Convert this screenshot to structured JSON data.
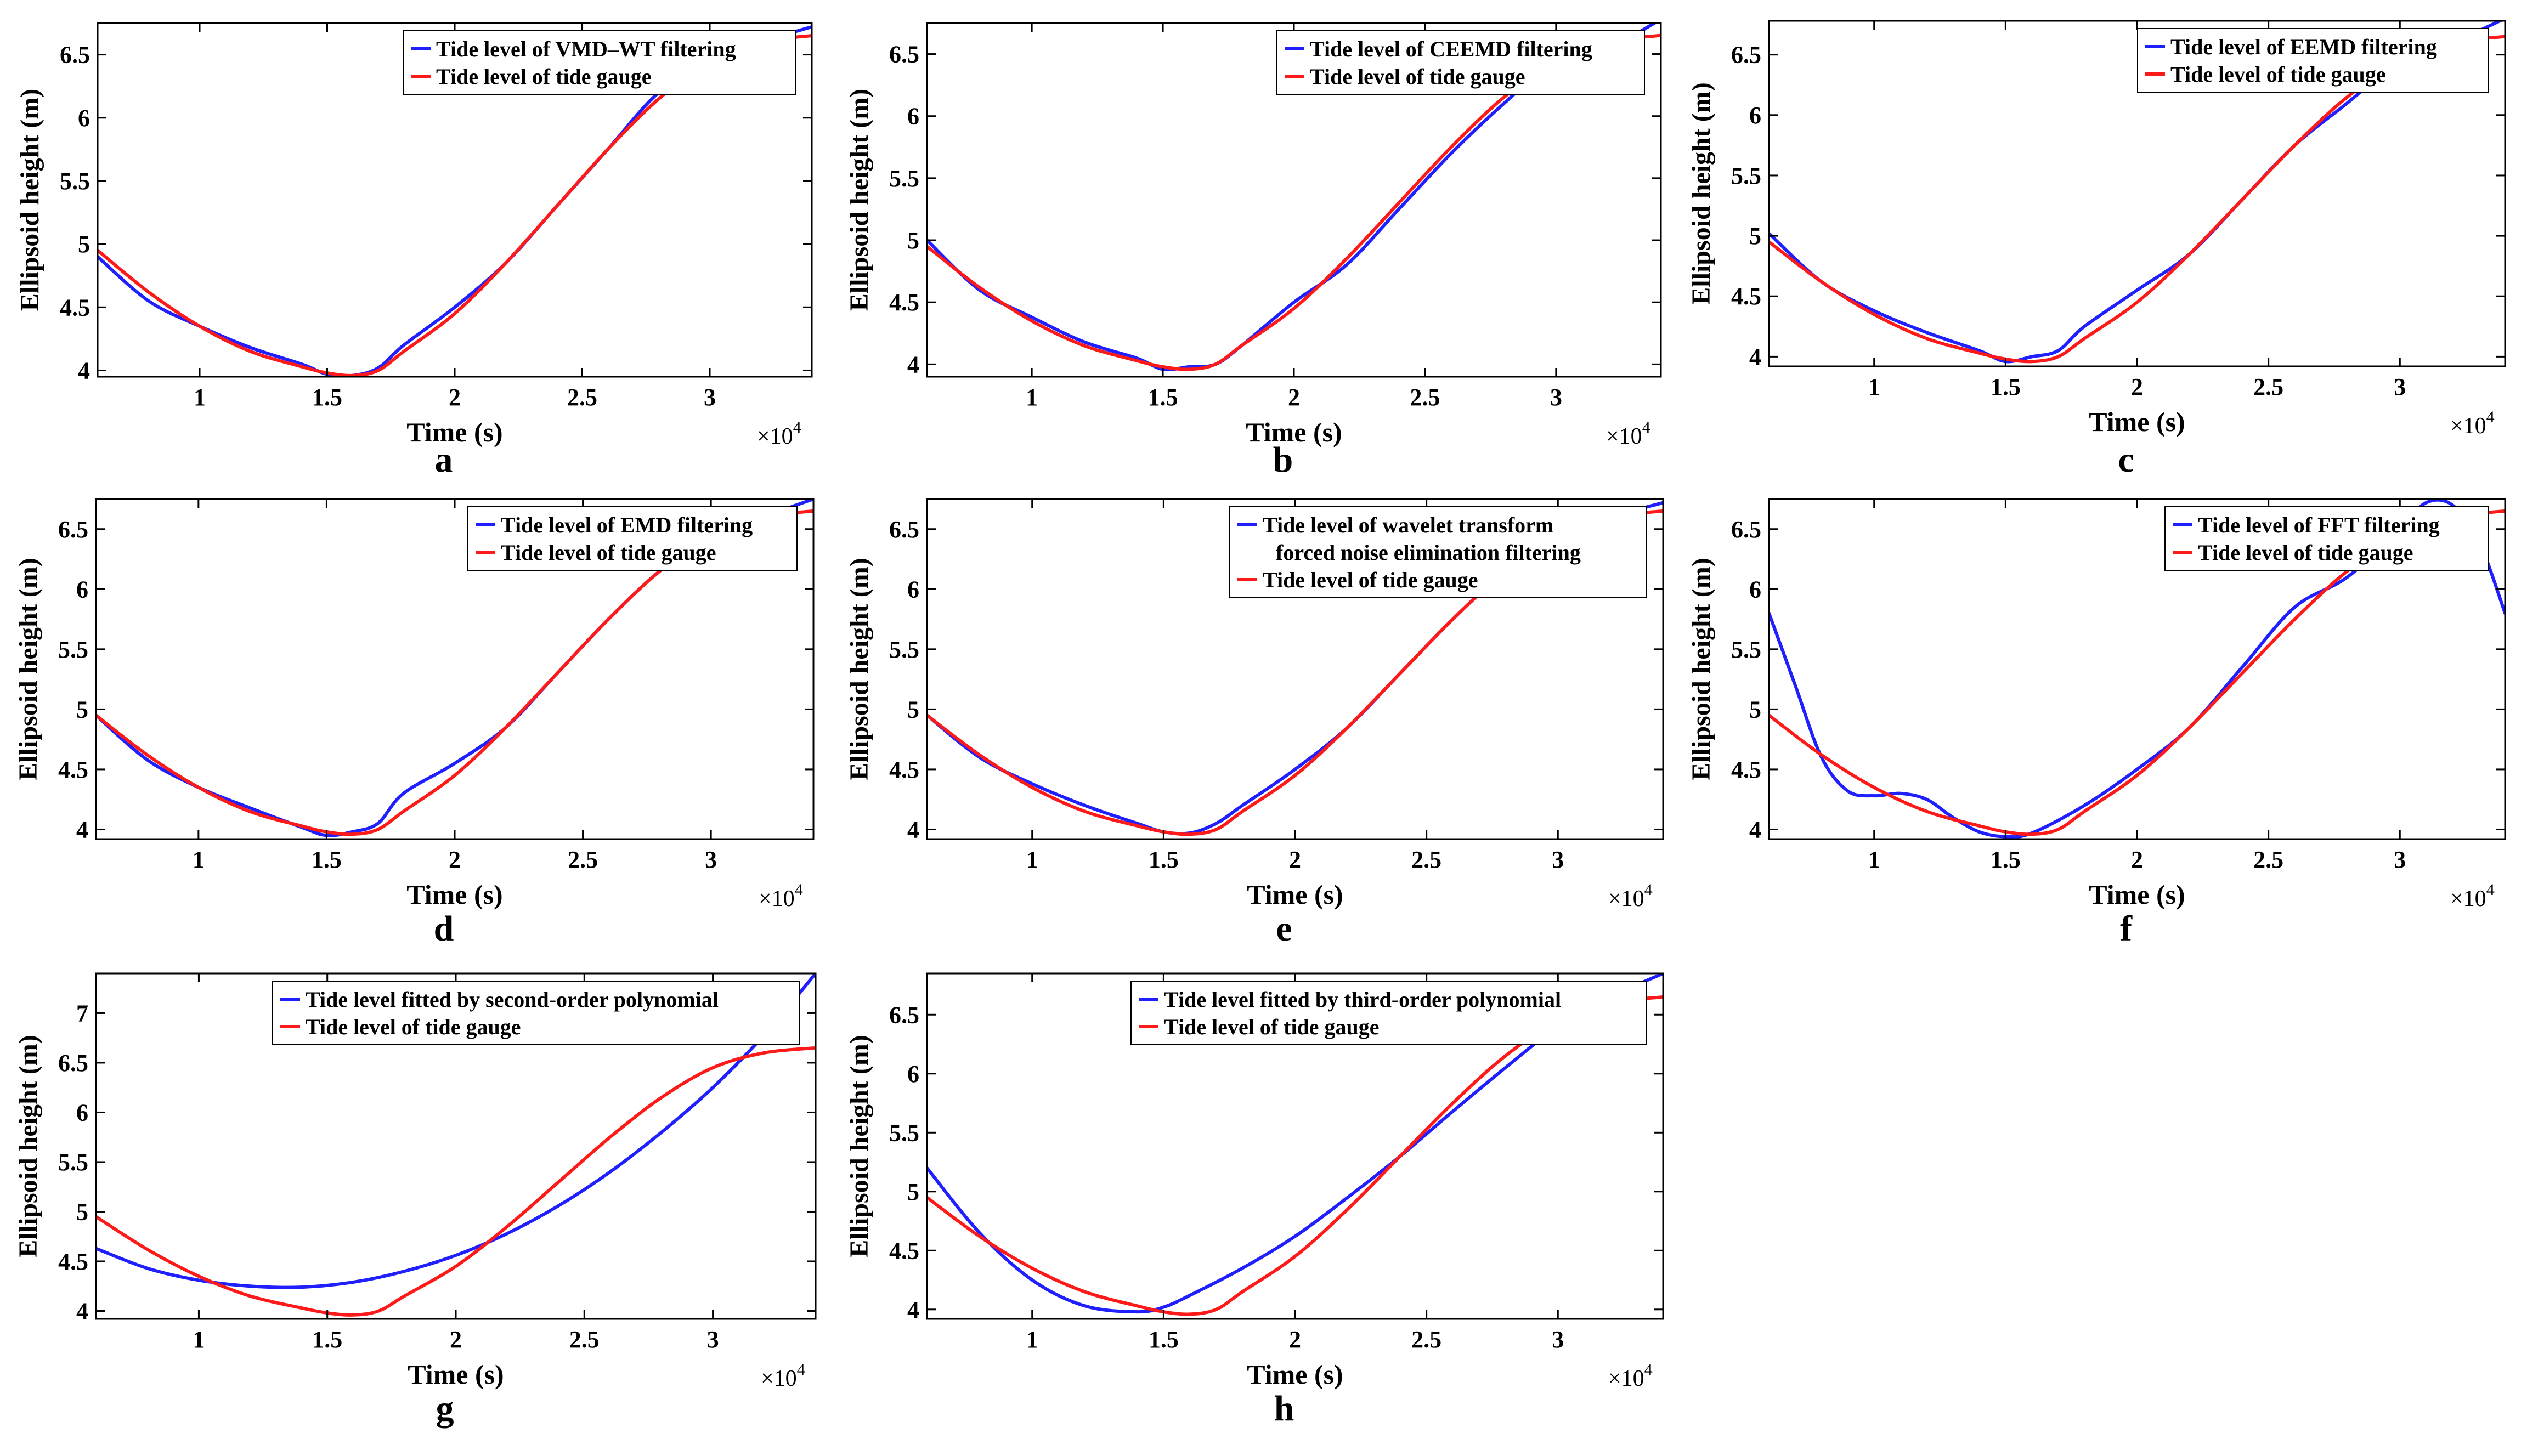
{
  "figure": {
    "colors": {
      "filtered": "#1f1fff",
      "gauge": "#ff1a1a",
      "axis": "#000000"
    },
    "x_exponent_label": "×10",
    "x_exponent_power": "4"
  },
  "chart_data": [
    {
      "panel": "a",
      "type": "line",
      "xlabel": "Time (s)",
      "ylabel": "Ellipsoid height (m)",
      "xlim": [
        0.6,
        3.4
      ],
      "ylim": [
        3.95,
        6.75
      ],
      "xticks": [
        "1",
        "1.5",
        "2",
        "2.5",
        "3"
      ],
      "yticks": [
        "4",
        "4.5",
        "5",
        "5.5",
        "6",
        "6.5"
      ],
      "legend": [
        "Tide level of VMD–WT filtering",
        "Tide level of tide gauge"
      ],
      "series": [
        {
          "name": "Tide level of VMD–WT filtering",
          "color": "blue",
          "x": [
            0.6,
            0.8,
            1.0,
            1.2,
            1.4,
            1.5,
            1.6,
            1.7,
            1.8,
            2.0,
            2.2,
            2.4,
            2.6,
            2.8,
            3.0,
            3.2,
            3.4
          ],
          "y": [
            4.9,
            4.55,
            4.35,
            4.18,
            4.05,
            3.97,
            3.96,
            4.02,
            4.2,
            4.5,
            4.85,
            5.3,
            5.75,
            6.2,
            6.45,
            6.6,
            6.72
          ]
        },
        {
          "name": "Tide level of tide gauge",
          "color": "red",
          "x": [
            0.6,
            0.8,
            1.0,
            1.2,
            1.4,
            1.5,
            1.6,
            1.7,
            1.8,
            2.0,
            2.2,
            2.4,
            2.6,
            2.8,
            3.0,
            3.2,
            3.4
          ],
          "y": [
            4.95,
            4.62,
            4.35,
            4.15,
            4.03,
            3.98,
            3.96,
            4.0,
            4.15,
            4.45,
            4.85,
            5.3,
            5.75,
            6.15,
            6.45,
            6.6,
            6.65
          ]
        }
      ]
    },
    {
      "panel": "b",
      "type": "line",
      "xlabel": "Time (s)",
      "ylabel": "Ellipsoid height (m)",
      "xlim": [
        0.6,
        3.4
      ],
      "ylim": [
        3.9,
        6.75
      ],
      "xticks": [
        "1",
        "1.5",
        "2",
        "2.5",
        "3"
      ],
      "yticks": [
        "4",
        "4.5",
        "5",
        "5.5",
        "6",
        "6.5"
      ],
      "legend": [
        "Tide level of CEEMD filtering",
        "Tide level of tide gauge"
      ],
      "series": [
        {
          "name": "Tide level of CEEMD filtering",
          "color": "blue",
          "x": [
            0.6,
            0.8,
            1.0,
            1.2,
            1.4,
            1.5,
            1.6,
            1.7,
            1.8,
            2.0,
            2.2,
            2.4,
            2.6,
            2.8,
            3.0,
            3.2,
            3.4
          ],
          "y": [
            5.0,
            4.6,
            4.38,
            4.18,
            4.05,
            3.96,
            3.98,
            4.0,
            4.15,
            4.5,
            4.8,
            5.25,
            5.7,
            6.1,
            6.45,
            6.55,
            6.78
          ]
        },
        {
          "name": "Tide level of tide gauge",
          "color": "red",
          "x": [
            0.6,
            0.8,
            1.0,
            1.2,
            1.4,
            1.5,
            1.6,
            1.7,
            1.8,
            2.0,
            2.2,
            2.4,
            2.6,
            2.8,
            3.0,
            3.2,
            3.4
          ],
          "y": [
            4.95,
            4.62,
            4.35,
            4.15,
            4.03,
            3.98,
            3.96,
            4.0,
            4.15,
            4.45,
            4.85,
            5.3,
            5.75,
            6.15,
            6.45,
            6.6,
            6.65
          ]
        }
      ]
    },
    {
      "panel": "c",
      "type": "line",
      "xlabel": "Time (s)",
      "ylabel": "Ellipsoid height (m)",
      "xlim": [
        0.6,
        3.4
      ],
      "ylim": [
        3.92,
        6.78
      ],
      "xticks": [
        "1",
        "1.5",
        "2",
        "2.5",
        "3"
      ],
      "yticks": [
        "4",
        "4.5",
        "5",
        "5.5",
        "6",
        "6.5"
      ],
      "legend": [
        "Tide level of EEMD filtering",
        "Tide level of tide gauge"
      ],
      "series": [
        {
          "name": "Tide level of EEMD filtering",
          "color": "blue",
          "x": [
            0.6,
            0.8,
            1.0,
            1.2,
            1.4,
            1.5,
            1.6,
            1.7,
            1.8,
            2.0,
            2.2,
            2.4,
            2.6,
            2.8,
            3.0,
            3.2,
            3.4
          ],
          "y": [
            5.02,
            4.62,
            4.38,
            4.2,
            4.05,
            3.96,
            4.0,
            4.05,
            4.25,
            4.55,
            4.85,
            5.3,
            5.75,
            6.1,
            6.45,
            6.6,
            6.8
          ]
        },
        {
          "name": "Tide level of tide gauge",
          "color": "red",
          "x": [
            0.6,
            0.8,
            1.0,
            1.2,
            1.4,
            1.5,
            1.6,
            1.7,
            1.8,
            2.0,
            2.2,
            2.4,
            2.6,
            2.8,
            3.0,
            3.2,
            3.4
          ],
          "y": [
            4.95,
            4.62,
            4.35,
            4.15,
            4.03,
            3.98,
            3.96,
            4.0,
            4.15,
            4.45,
            4.85,
            5.3,
            5.75,
            6.15,
            6.45,
            6.6,
            6.65
          ]
        }
      ]
    },
    {
      "panel": "d",
      "type": "line",
      "xlabel": "Time (s)",
      "ylabel": "Ellipsoid height (m)",
      "xlim": [
        0.6,
        3.4
      ],
      "ylim": [
        3.92,
        6.75
      ],
      "xticks": [
        "1",
        "1.5",
        "2",
        "2.5",
        "3"
      ],
      "yticks": [
        "4",
        "4.5",
        "5",
        "5.5",
        "6",
        "6.5"
      ],
      "legend": [
        "Tide level of EMD filtering",
        "Tide level of tide gauge"
      ],
      "series": [
        {
          "name": "Tide level of EMD filtering",
          "color": "blue",
          "x": [
            0.6,
            0.8,
            1.0,
            1.2,
            1.4,
            1.5,
            1.6,
            1.7,
            1.8,
            2.0,
            2.2,
            2.4,
            2.6,
            2.8,
            3.0,
            3.2,
            3.4
          ],
          "y": [
            4.95,
            4.58,
            4.35,
            4.18,
            4.02,
            3.95,
            3.98,
            4.05,
            4.3,
            4.55,
            4.85,
            5.3,
            5.75,
            6.15,
            6.45,
            6.6,
            6.75
          ]
        },
        {
          "name": "Tide level of tide gauge",
          "color": "red",
          "x": [
            0.6,
            0.8,
            1.0,
            1.2,
            1.4,
            1.5,
            1.6,
            1.7,
            1.8,
            2.0,
            2.2,
            2.4,
            2.6,
            2.8,
            3.0,
            3.2,
            3.4
          ],
          "y": [
            4.95,
            4.62,
            4.35,
            4.15,
            4.03,
            3.98,
            3.96,
            4.0,
            4.15,
            4.45,
            4.85,
            5.3,
            5.75,
            6.15,
            6.45,
            6.6,
            6.65
          ]
        }
      ]
    },
    {
      "panel": "e",
      "type": "line",
      "xlabel": "Time (s)",
      "ylabel": "Ellipsoid height (m)",
      "xlim": [
        0.6,
        3.4
      ],
      "ylim": [
        3.92,
        6.75
      ],
      "xticks": [
        "1",
        "1.5",
        "2",
        "2.5",
        "3"
      ],
      "yticks": [
        "4",
        "4.5",
        "5",
        "5.5",
        "6",
        "6.5"
      ],
      "legend": [
        "Tide level of wavelet transform",
        "forced noise elimination filtering",
        "Tide level of tide gauge"
      ],
      "series": [
        {
          "name": "Tide level of wavelet transform forced noise elimination filtering",
          "color": "blue",
          "x": [
            0.6,
            0.8,
            1.0,
            1.2,
            1.4,
            1.5,
            1.6,
            1.7,
            1.8,
            2.0,
            2.2,
            2.4,
            2.6,
            2.8,
            3.0,
            3.2,
            3.4
          ],
          "y": [
            4.95,
            4.6,
            4.38,
            4.2,
            4.05,
            3.98,
            3.97,
            4.05,
            4.2,
            4.5,
            4.85,
            5.3,
            5.75,
            6.15,
            6.45,
            6.6,
            6.72
          ]
        },
        {
          "name": "Tide level of tide gauge",
          "color": "red",
          "x": [
            0.6,
            0.8,
            1.0,
            1.2,
            1.4,
            1.5,
            1.6,
            1.7,
            1.8,
            2.0,
            2.2,
            2.4,
            2.6,
            2.8,
            3.0,
            3.2,
            3.4
          ],
          "y": [
            4.95,
            4.62,
            4.35,
            4.15,
            4.03,
            3.98,
            3.96,
            4.0,
            4.15,
            4.45,
            4.85,
            5.3,
            5.75,
            6.15,
            6.45,
            6.6,
            6.65
          ]
        }
      ]
    },
    {
      "panel": "f",
      "type": "line",
      "xlabel": "Time (s)",
      "ylabel": "Ellipsoid height (m)",
      "xlim": [
        0.6,
        3.4
      ],
      "ylim": [
        3.92,
        6.75
      ],
      "xticks": [
        "1",
        "1.5",
        "2",
        "2.5",
        "3"
      ],
      "yticks": [
        "4",
        "4.5",
        "5",
        "5.5",
        "6",
        "6.5"
      ],
      "legend": [
        "Tide level of FFT filtering",
        "Tide level of tide gauge"
      ],
      "series": [
        {
          "name": "Tide level of FFT filtering",
          "color": "blue",
          "x": [
            0.6,
            0.7,
            0.8,
            0.9,
            1.0,
            1.1,
            1.2,
            1.3,
            1.4,
            1.5,
            1.6,
            1.8,
            2.0,
            2.2,
            2.4,
            2.6,
            2.8,
            3.0,
            3.1,
            3.2,
            3.3,
            3.4
          ],
          "y": [
            5.8,
            5.2,
            4.6,
            4.32,
            4.28,
            4.3,
            4.25,
            4.1,
            3.98,
            3.94,
            3.97,
            4.2,
            4.5,
            4.85,
            5.35,
            5.85,
            6.1,
            6.5,
            6.72,
            6.7,
            6.4,
            5.8
          ]
        },
        {
          "name": "Tide level of tide gauge",
          "color": "red",
          "x": [
            0.6,
            0.8,
            1.0,
            1.2,
            1.4,
            1.5,
            1.6,
            1.7,
            1.8,
            2.0,
            2.2,
            2.4,
            2.6,
            2.8,
            3.0,
            3.2,
            3.4
          ],
          "y": [
            4.95,
            4.62,
            4.35,
            4.15,
            4.03,
            3.98,
            3.96,
            4.0,
            4.15,
            4.45,
            4.85,
            5.3,
            5.75,
            6.15,
            6.45,
            6.6,
            6.65
          ]
        }
      ]
    },
    {
      "panel": "g",
      "type": "line",
      "xlabel": "Time (s)",
      "ylabel": "Ellipsoid height (m)",
      "xlim": [
        0.6,
        3.4
      ],
      "ylim": [
        3.92,
        7.4
      ],
      "xticks": [
        "1",
        "1.5",
        "2",
        "2.5",
        "3"
      ],
      "yticks": [
        "4",
        "4.5",
        "5",
        "5.5",
        "6",
        "6.5",
        "7"
      ],
      "legend": [
        "Tide level fitted by second-order polynomial",
        "Tide level of tide gauge"
      ],
      "series": [
        {
          "name": "Tide level fitted by second-order polynomial",
          "color": "blue",
          "x": [
            0.6,
            0.8,
            1.0,
            1.2,
            1.4,
            1.6,
            1.8,
            2.0,
            2.2,
            2.4,
            2.6,
            2.8,
            3.0,
            3.2,
            3.4
          ],
          "y": [
            4.63,
            4.43,
            4.31,
            4.25,
            4.24,
            4.29,
            4.4,
            4.56,
            4.78,
            5.06,
            5.4,
            5.8,
            6.25,
            6.78,
            7.4
          ]
        },
        {
          "name": "Tide level of tide gauge",
          "color": "red",
          "x": [
            0.6,
            0.8,
            1.0,
            1.2,
            1.4,
            1.5,
            1.6,
            1.7,
            1.8,
            2.0,
            2.2,
            2.4,
            2.6,
            2.8,
            3.0,
            3.2,
            3.4
          ],
          "y": [
            4.95,
            4.62,
            4.35,
            4.15,
            4.03,
            3.98,
            3.96,
            4.0,
            4.15,
            4.45,
            4.85,
            5.3,
            5.75,
            6.15,
            6.45,
            6.6,
            6.65
          ]
        }
      ]
    },
    {
      "panel": "h",
      "type": "line",
      "xlabel": "Time (s)",
      "ylabel": "Ellipsoid height (m)",
      "xlim": [
        0.6,
        3.4
      ],
      "ylim": [
        3.92,
        6.85
      ],
      "xticks": [
        "1",
        "1.5",
        "2",
        "2.5",
        "3"
      ],
      "yticks": [
        "4",
        "4.5",
        "5",
        "5.5",
        "6",
        "6.5"
      ],
      "legend": [
        "Tide level fitted by third-order polynomial",
        "Tide level of tide gauge"
      ],
      "series": [
        {
          "name": "Tide level fitted by third-order polynomial",
          "color": "blue",
          "x": [
            0.6,
            0.8,
            1.0,
            1.2,
            1.4,
            1.5,
            1.6,
            1.8,
            2.0,
            2.2,
            2.4,
            2.6,
            2.8,
            3.0,
            3.2,
            3.4
          ],
          "y": [
            5.2,
            4.65,
            4.25,
            4.03,
            3.98,
            4.02,
            4.12,
            4.35,
            4.62,
            4.95,
            5.3,
            5.68,
            6.05,
            6.4,
            6.65,
            6.85
          ]
        },
        {
          "name": "Tide level of tide gauge",
          "color": "red",
          "x": [
            0.6,
            0.8,
            1.0,
            1.2,
            1.4,
            1.5,
            1.6,
            1.7,
            1.8,
            2.0,
            2.2,
            2.4,
            2.6,
            2.8,
            3.0,
            3.2,
            3.4
          ],
          "y": [
            4.95,
            4.62,
            4.35,
            4.15,
            4.03,
            3.98,
            3.96,
            4.0,
            4.15,
            4.45,
            4.85,
            5.3,
            5.75,
            6.15,
            6.45,
            6.6,
            6.65
          ]
        }
      ]
    }
  ]
}
